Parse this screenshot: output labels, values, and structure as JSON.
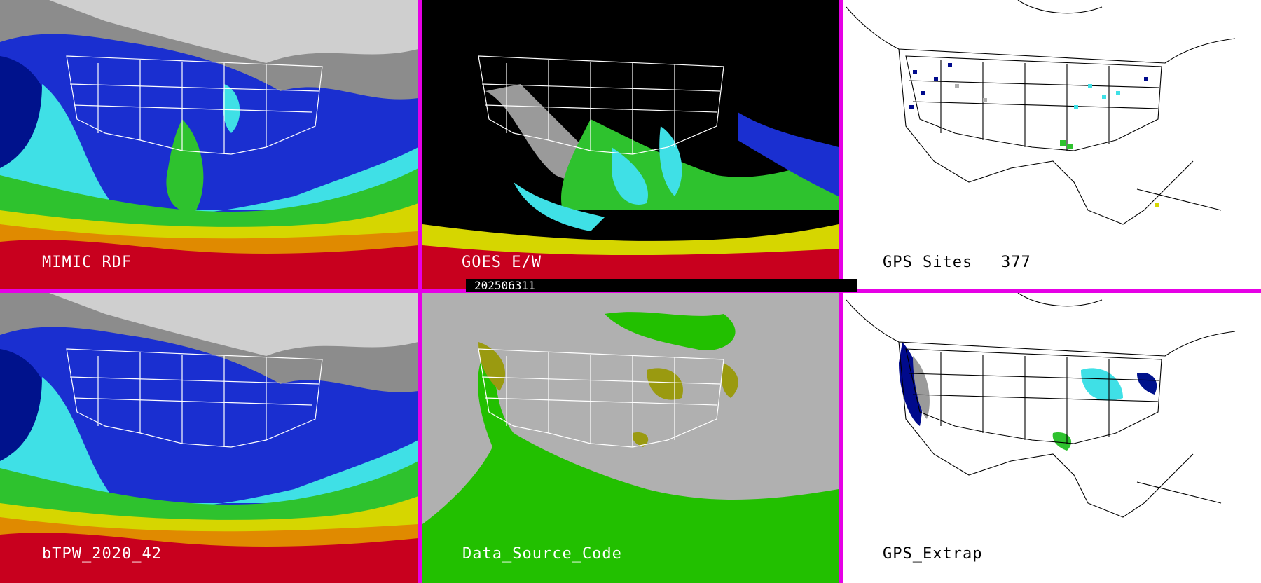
{
  "panels": [
    {
      "label": "MIMIC RDF",
      "theme": "sat-tpw"
    },
    {
      "label": "GOES E/W",
      "theme": "goes"
    },
    {
      "label": "GPS Sites",
      "count": "377",
      "theme": "gps-sites"
    },
    {
      "label": "bTPW_2020_42",
      "theme": "sat-tpw"
    },
    {
      "label": "Data_Source_Code",
      "theme": "source-code"
    },
    {
      "label": "GPS_Extrap",
      "theme": "gps-extrap"
    }
  ],
  "timestamp": "202506311",
  "colors": {
    "frame": "#e600e6",
    "palette_dark_blue": "#000a8c",
    "palette_blue": "#1a2fd0",
    "palette_cyan": "#3fe0e6",
    "palette_green": "#2ec22e",
    "palette_yellow": "#d6d600",
    "palette_orange": "#e08a00",
    "palette_red": "#c8001e",
    "source_gray": "#b0b0b0",
    "source_green": "#22c000",
    "source_olive": "#9a9a10"
  }
}
